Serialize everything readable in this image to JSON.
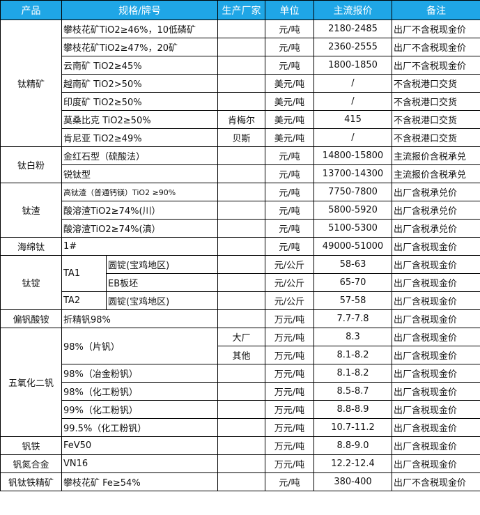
{
  "header": {
    "product": "产品",
    "spec": "规格/牌号",
    "maker": "生产厂家",
    "unit": "单位",
    "price": "主流报价",
    "note": "备注"
  },
  "colors": {
    "header_bg": "#1fa6e6",
    "header_text": "#ffffff",
    "border": "#000000"
  },
  "groups": [
    {
      "product": "钛精矿",
      "items": [
        {
          "spec": "攀枝花矿TiO2≥46%，10低磷矿",
          "maker": "",
          "unit": "元/吨",
          "price": "2180-2485",
          "note": "出厂不含税现金价"
        },
        {
          "spec": "攀枝花矿TiO2≥47%，20矿",
          "maker": "",
          "unit": "元/吨",
          "price": "2360-2555",
          "note": "出厂不含税现金价"
        },
        {
          "spec": "云南矿 TiO2≥45%",
          "maker": "",
          "unit": "元/吨",
          "price": "1800-1850",
          "note": "出厂不含税现金价"
        },
        {
          "spec": "越南矿 TiO2>50%",
          "maker": "",
          "unit": "美元/吨",
          "price": "/",
          "note": "不含税港口交货"
        },
        {
          "spec": "印度矿 TiO2≥50%",
          "maker": "",
          "unit": "美元/吨",
          "price": "/",
          "note": "不含税港口交货"
        },
        {
          "spec": "莫桑比克 TiO2≥50%",
          "maker": "肯梅尔",
          "unit": "美元/吨",
          "price": "415",
          "note": "不含税港口交货"
        },
        {
          "spec": "肯尼亚 TiO2≥49%",
          "maker": "贝斯",
          "unit": "美元/吨",
          "price": "/",
          "note": "不含税港口交货"
        }
      ]
    },
    {
      "product": "钛白粉",
      "items": [
        {
          "spec": "金红石型（硫酸法）",
          "maker": "",
          "unit": "元/吨",
          "price": "14800-15800",
          "note": "主流报价含税承兑"
        },
        {
          "spec": "锐钛型",
          "maker": "",
          "unit": "元/吨",
          "price": "13700-14300",
          "note": "主流报价含税承兑"
        }
      ]
    },
    {
      "product": "钛渣",
      "items": [
        {
          "spec": "高钛渣（普通钙镁）TiO2 ≥90%",
          "maker": "",
          "unit": "元/吨",
          "price": "7750-7800",
          "note": "出厂含税承兑价",
          "small": true
        },
        {
          "spec": "酸溶渣TiO2≥74%(川）",
          "maker": "",
          "unit": "元/吨",
          "price": "5800-5920",
          "note": "出厂含税承兑价"
        },
        {
          "spec": "酸溶渣TiO2≥74%(滇）",
          "maker": "",
          "unit": "元/吨",
          "price": "5100-5300",
          "note": "出厂含税承兑价"
        }
      ]
    },
    {
      "product": "海绵钛",
      "items": [
        {
          "spec": "1#",
          "maker": "",
          "unit": "元/吨",
          "price": "49000-51000",
          "note": "出厂含税现金价"
        }
      ]
    },
    {
      "product": "钛锭",
      "items": [
        {
          "grade": "TA1",
          "specs": [
            {
              "spec": "圆锭(宝鸡地区)",
              "maker": "",
              "unit": "元/公斤",
              "price": "58-63",
              "note": "出厂含税现金价"
            },
            {
              "spec": "EB板坯",
              "maker": "",
              "unit": "元/公斤",
              "price": "65-70",
              "note": "出厂含税现金价"
            }
          ]
        },
        {
          "grade": "TA2",
          "specs": [
            {
              "spec": "圆锭(宝鸡地区)",
              "maker": "",
              "unit": "元/公斤",
              "price": "57-58",
              "note": "出厂含税现金价"
            }
          ]
        }
      ]
    },
    {
      "product": "偏钒酸铵",
      "items": [
        {
          "spec": "折精钒98%",
          "maker": "",
          "unit": "万元/吨",
          "price": "7.7-7.8",
          "note": "出厂含税现金价"
        }
      ]
    },
    {
      "product": "五氧化二钒",
      "items": [
        {
          "spec": "98%（片钒）",
          "makers": [
            {
              "maker": "大厂",
              "unit": "万元/吨",
              "price": "8.3",
              "note": "出厂含税现金价"
            },
            {
              "maker": "其他",
              "unit": "万元/吨",
              "price": "8.1-8.2",
              "note": "出厂含税现金价"
            }
          ]
        },
        {
          "spec": "98%（冶金粉钒）",
          "maker": "",
          "unit": "万元/吨",
          "price": "8.1-8.2",
          "note": "出厂含税现金价"
        },
        {
          "spec": "98%（化工粉钒）",
          "maker": "",
          "unit": "万元/吨",
          "price": "8.5-8.7",
          "note": "出厂含税现金价"
        },
        {
          "spec": "99%（化工粉钒）",
          "maker": "",
          "unit": "万元/吨",
          "price": "8.8-8.9",
          "note": "出厂含税现金价"
        },
        {
          "spec": "99.5%（化工粉钒）",
          "maker": "",
          "unit": "万元/吨",
          "price": "10.7-11.2",
          "note": "出厂含税现金价"
        }
      ]
    },
    {
      "product": "钒铁",
      "items": [
        {
          "spec": "FeV50",
          "maker": "",
          "unit": "万元/吨",
          "price": "8.8-9.0",
          "note": "出厂含税现金价"
        }
      ]
    },
    {
      "product": "钒氮合金",
      "items": [
        {
          "spec": "VN16",
          "maker": "",
          "unit": "万元/吨",
          "price": "12.2-12.4",
          "note": "出厂含税现金价"
        }
      ]
    },
    {
      "product": "钒钛铁精矿",
      "items": [
        {
          "spec": "攀枝花矿 Fe≥54%",
          "maker": "",
          "unit": "元/吨",
          "price": "380-400",
          "note": "出厂不含税现金价"
        }
      ]
    }
  ]
}
